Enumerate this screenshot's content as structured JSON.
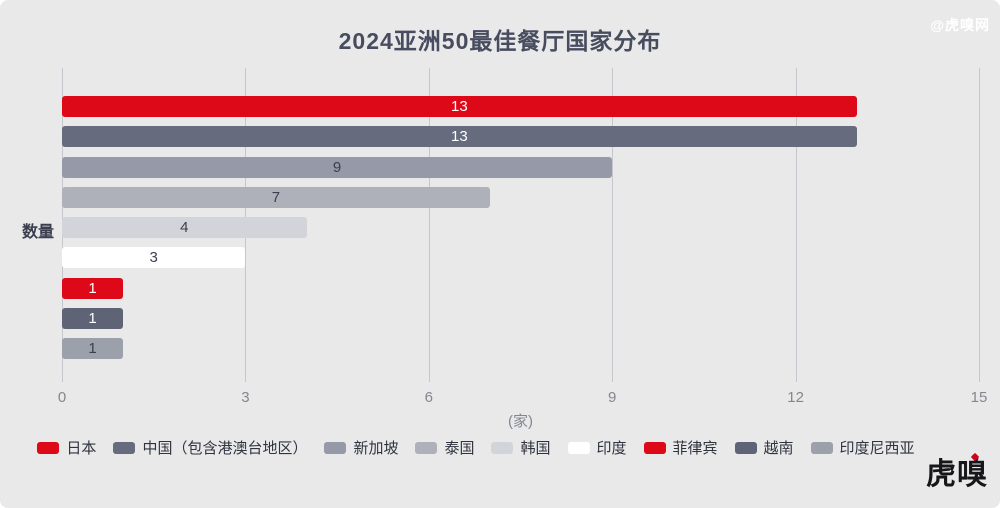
{
  "page": {
    "background": "#E9E9EA",
    "title_color": "#474C5F",
    "grid_color": "#C6C7CC",
    "axis_text_color": "#85878F",
    "legend_text_color": "#30343F",
    "dark_value_text_color": "#3A3E4F",
    "watermark_color": "#FFFFFF",
    "logo_color": "#17171A",
    "logo_accent_color": "#D0021B"
  },
  "header": {
    "title": "2024亚洲50最佳餐厅国家分布",
    "watermark": "@虎嗅网"
  },
  "chart_data": {
    "type": "bar",
    "orientation": "horizontal",
    "title": "2024亚洲50最佳餐厅国家分布",
    "ylabel": "数量",
    "x_unit_label": "(家)",
    "xlim": [
      0,
      15
    ],
    "xticks": [
      "0",
      "3",
      "6",
      "9",
      "12",
      "15"
    ],
    "xtick_values": [
      0,
      3,
      6,
      9,
      12,
      15
    ],
    "grid": true,
    "legend_position": "bottom",
    "categories": [
      "日本",
      "中国（包含港澳台地区）",
      "新加坡",
      "泰国",
      "韩国",
      "印度",
      "菲律宾",
      "越南",
      "印度尼西亚"
    ],
    "values": [
      13,
      13,
      9,
      7,
      4,
      3,
      1,
      1,
      1
    ],
    "bar_colors": [
      "#DE0918",
      "#666B7D",
      "#9599A8",
      "#AEB1B9",
      "#D2D4DA",
      "#FFFFFF",
      "#DE0918",
      "#5E6476",
      "#9CA0AB"
    ],
    "value_label_colors": [
      "#FFFFFF",
      "#FFFFFF",
      "#3A3E4F",
      "#3A3E4F",
      "#3A3E4F",
      "#3A3E4F",
      "#FFFFFF",
      "#FFFFFF",
      "#3A3E4F"
    ]
  },
  "footer": {
    "logo_text": "虎嗅"
  }
}
